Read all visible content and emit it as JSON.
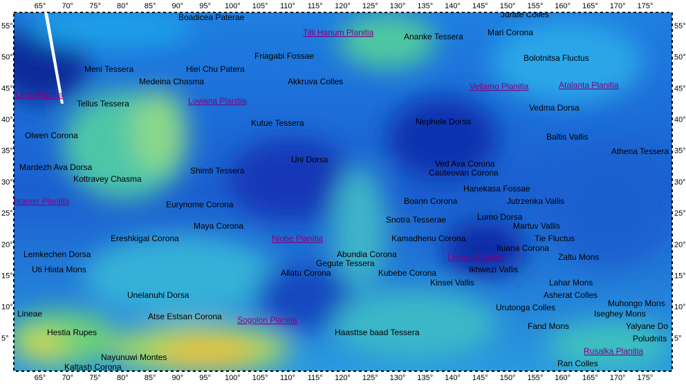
{
  "longitude_ticks": [
    "65°",
    "70°",
    "75°",
    "80°",
    "85°",
    "90°",
    "95°",
    "100°",
    "105°",
    "110°",
    "115°",
    "120°",
    "125°",
    "130°",
    "135°",
    "140°",
    "145°",
    "150°",
    "155°",
    "160°",
    "165°",
    "170°",
    "175°"
  ],
  "latitude_ticks": [
    "5°",
    "10°",
    "15°",
    "20°",
    "25°",
    "30°",
    "35°",
    "40°",
    "45°",
    "50°",
    "55°"
  ],
  "features": [
    "Jurate Colles",
    "Boadicea Paterae",
    "Ananke Tessera",
    "Mari Corona",
    "Friagabi Fossae",
    "Bolotnitsa Fluctus",
    "Meni Tessera",
    "Hiei Chu Patera",
    "Medeina Chasma",
    "Akkruva Colles",
    "Tellus Tessera",
    "Vedma Dorsa",
    "Kutue Tessera",
    "Nephele Dorsa",
    "Olwen Corona",
    "Baltis Vallis",
    "Athena Tessera",
    "Uni Dorsa",
    "Ved Ava Corona",
    "Mardezh Ava Dorsa",
    "Shimti Tessera",
    "Cauteovan Corona",
    "Kottravey Chasma",
    "Hanekasa Fossae",
    "Boann Corona",
    "Jutrzenka Vallis",
    "Eurynome Corona",
    "Lumo Dorsa",
    "Snotra Tesserae",
    "Martuv Vallis",
    "Maya Corona",
    "Ereshkigal Corona",
    "Kamadhenu Corona",
    "Tie Fluctus",
    "Ituana Corona",
    "Lemkechen Dorsa",
    "Abundia Corona",
    "Zaltu Mons",
    "Gegute Tessera",
    "Uti Hiata Mons",
    "Ikhwezi Vallis",
    "Allatu Corona",
    "Kubebe Corona",
    "Kinsei Vallis",
    "Lahar Mons",
    "Unelanuhi Dorsa",
    "Asherat Colles",
    "Muhongo Mons",
    "Urutonga Colles",
    "Lineae",
    "Iseghey Mons",
    "Atse Estsan Corona",
    "Fand Mons",
    "Yalyane Do",
    "Hestia Rupes",
    "Haasttse baad Tessera",
    "Poludnits",
    "Nayunuwi Montes",
    "Ran Colles",
    "Kaltash Corona"
  ],
  "planitiae": [
    "Tilli Hanum Planitia",
    "Vellamo Planitia",
    "Atalanta Planitia",
    "Leda Planitia",
    "Lowana Planitia",
    "htamer Planitia",
    "Niobe Planitia",
    "Llorona Planitia",
    "Sogolon Planitia",
    "Rusalka Planitia"
  ]
}
